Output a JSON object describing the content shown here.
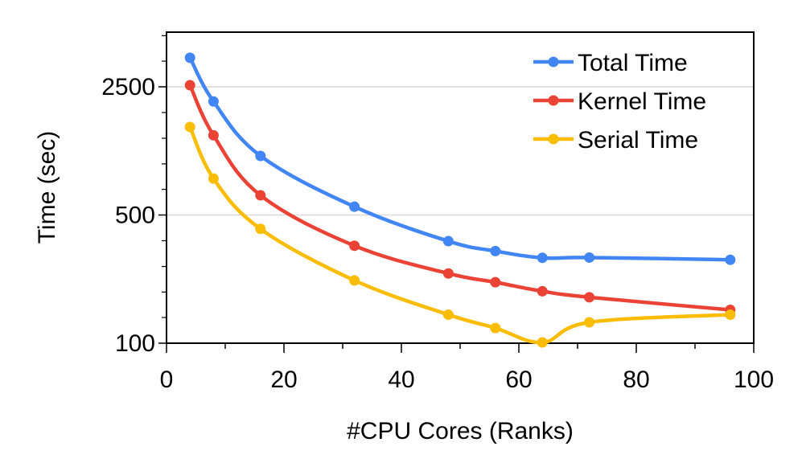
{
  "chart_data": {
    "type": "line",
    "title": "",
    "xlabel": "#CPU Cores (Ranks)",
    "ylabel": "Time (sec)",
    "xlim": [
      0,
      100
    ],
    "ylim": [
      100,
      5000
    ],
    "yscale": "log",
    "xticks": [
      0,
      20,
      40,
      60,
      80,
      100
    ],
    "xtick_labels": [
      "0",
      "20",
      "40",
      "60",
      "80",
      "100"
    ],
    "yticks": [
      100,
      500,
      2500
    ],
    "ytick_labels": [
      "100",
      "500",
      "2500"
    ],
    "grid": "horizontal major lines",
    "legend_position": "top-right",
    "x": [
      4,
      8,
      16,
      32,
      48,
      56,
      64,
      72,
      96
    ],
    "series": [
      {
        "name": "Total Time",
        "color": "#4285F4",
        "values": [
          3600,
          2080,
          1050,
          555,
          360,
          318,
          292,
          293,
          285
        ]
      },
      {
        "name": "Kernel Time",
        "color": "#EA4335",
        "values": [
          2550,
          1360,
          640,
          340,
          240,
          215,
          192,
          178,
          152
        ]
      },
      {
        "name": "Serial Time",
        "color": "#FBBC04",
        "values": [
          1510,
          790,
          420,
          220,
          143,
          121,
          101,
          130,
          143
        ]
      }
    ]
  }
}
